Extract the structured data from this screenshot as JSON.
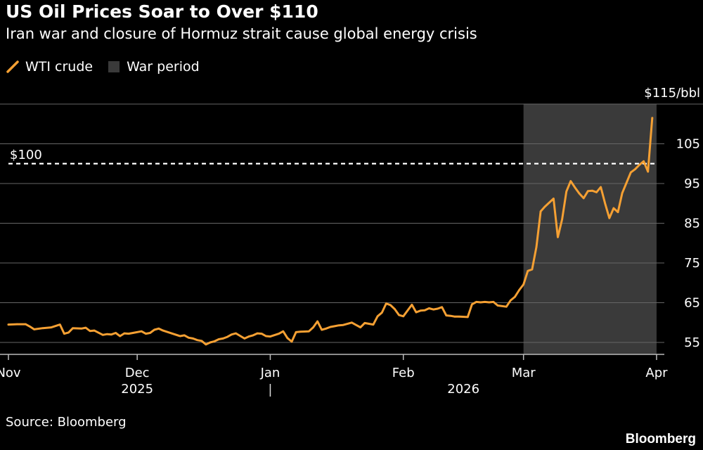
{
  "header": {
    "title": "US Oil Prices Soar to Over $110",
    "subtitle": "Iran war and closure of Hormuz strait cause global energy crisis"
  },
  "footer": {
    "source": "Source: Bloomberg",
    "brand": "Bloomberg"
  },
  "colors": {
    "background": "#000000",
    "line": "#f5a033",
    "war_shade": "#3a3a3a",
    "grid": "#666666",
    "text": "#ffffff"
  },
  "chart_data": {
    "type": "line",
    "title": "US Oil Prices Soar to Over $110",
    "subtitle": "Iran war and closure of Hormuz strait cause global energy crisis",
    "xlabel": "",
    "ylabel": "$/bbl",
    "ylim": [
      52,
      115
    ],
    "y_ticks": [
      {
        "value": 105,
        "label": "105"
      },
      {
        "value": 95,
        "label": "95"
      },
      {
        "value": 85,
        "label": "85"
      },
      {
        "value": 75,
        "label": "75"
      },
      {
        "value": 65,
        "label": "65"
      },
      {
        "value": 55,
        "label": "55"
      }
    ],
    "y_top_label": "$115/bbl",
    "x_ticks": [
      {
        "day": 0,
        "label": "Nov"
      },
      {
        "day": 30,
        "label": "Dec"
      },
      {
        "day": 61,
        "label": "Jan"
      },
      {
        "day": 92,
        "label": "Feb"
      },
      {
        "day": 120,
        "label": "Mar"
      },
      {
        "day": 151,
        "label": "Apr"
      }
    ],
    "year_labels": [
      {
        "day": 30,
        "label": "2025"
      },
      {
        "day": 106,
        "label": "2026"
      }
    ],
    "year_divider_day": 61,
    "legend": [
      {
        "name": "WTI crude",
        "kind": "line"
      },
      {
        "name": "War period",
        "kind": "shade"
      }
    ],
    "shaded_regions": [
      {
        "name": "War period",
        "start_day": 120,
        "end_day": 151
      }
    ],
    "reference_lines": [
      {
        "value": 100,
        "label": "$100",
        "style": "dashed"
      }
    ],
    "series": [
      {
        "name": "WTI crude",
        "x": [
          0,
          2,
          4,
          5,
          6,
          8,
          10,
          12,
          13,
          14,
          15,
          17,
          18,
          19,
          20,
          22,
          23,
          24,
          25,
          26,
          27,
          28,
          29,
          31,
          32,
          33,
          34,
          35,
          36,
          38,
          40,
          41,
          42,
          43,
          44,
          45,
          46,
          47,
          48,
          49,
          50,
          51,
          52,
          53,
          55,
          56,
          57,
          58,
          59,
          60,
          61,
          63,
          64,
          65,
          66,
          67,
          68,
          70,
          71,
          72,
          73,
          74,
          75,
          76,
          77,
          78,
          80,
          82,
          83,
          84,
          85,
          86,
          87,
          88,
          89,
          90,
          91,
          92,
          94,
          95,
          96,
          97,
          98,
          99,
          100,
          101,
          102,
          103,
          104,
          105,
          107,
          108,
          109,
          110,
          111,
          112,
          113,
          114,
          116,
          117,
          118,
          119,
          120,
          121,
          122,
          123,
          124,
          125,
          126,
          127,
          128,
          129,
          130,
          131,
          132,
          133,
          134,
          135,
          136,
          137,
          138,
          139,
          140,
          141,
          142,
          143,
          145,
          146,
          147,
          148,
          149,
          150
        ],
        "y": [
          59.5,
          59.6,
          59.6,
          59.0,
          58.3,
          58.6,
          58.8,
          59.5,
          57.2,
          57.5,
          58.6,
          58.5,
          58.7,
          57.9,
          58.0,
          56.9,
          57.1,
          57.0,
          57.4,
          56.6,
          57.3,
          57.2,
          57.4,
          57.8,
          57.2,
          57.4,
          58.2,
          58.5,
          58.0,
          57.3,
          56.6,
          56.8,
          56.2,
          56.0,
          55.6,
          55.4,
          54.5,
          55.0,
          55.3,
          55.8,
          56.0,
          56.4,
          57.0,
          57.3,
          56.0,
          56.5,
          56.8,
          57.3,
          57.2,
          56.6,
          56.5,
          57.2,
          57.8,
          56.1,
          55.2,
          57.6,
          57.7,
          57.8,
          58.8,
          60.3,
          58.2,
          58.5,
          58.9,
          59.1,
          59.3,
          59.4,
          60.0,
          58.8,
          59.9,
          59.7,
          59.5,
          61.6,
          62.5,
          64.8,
          64.4,
          63.4,
          61.9,
          61.6,
          64.5,
          62.6,
          63.0,
          63.1,
          63.6,
          63.3,
          63.5,
          63.9,
          61.8,
          61.7,
          61.5,
          61.5,
          61.4,
          64.6,
          65.2,
          65.1,
          65.2,
          65.1,
          65.2,
          64.3,
          64.0,
          65.6,
          66.5,
          68.2,
          69.6,
          73.0,
          73.4,
          79.0,
          88.0,
          89.2,
          90.2,
          91.2,
          81.5,
          86.0,
          93.0,
          95.6,
          94.0,
          92.5,
          91.3,
          93.1,
          93.2,
          92.8,
          94.1,
          90.0,
          86.3,
          88.8,
          87.8,
          92.6,
          97.8,
          98.6,
          99.7,
          100.6,
          98.0,
          111.5
        ]
      }
    ]
  }
}
